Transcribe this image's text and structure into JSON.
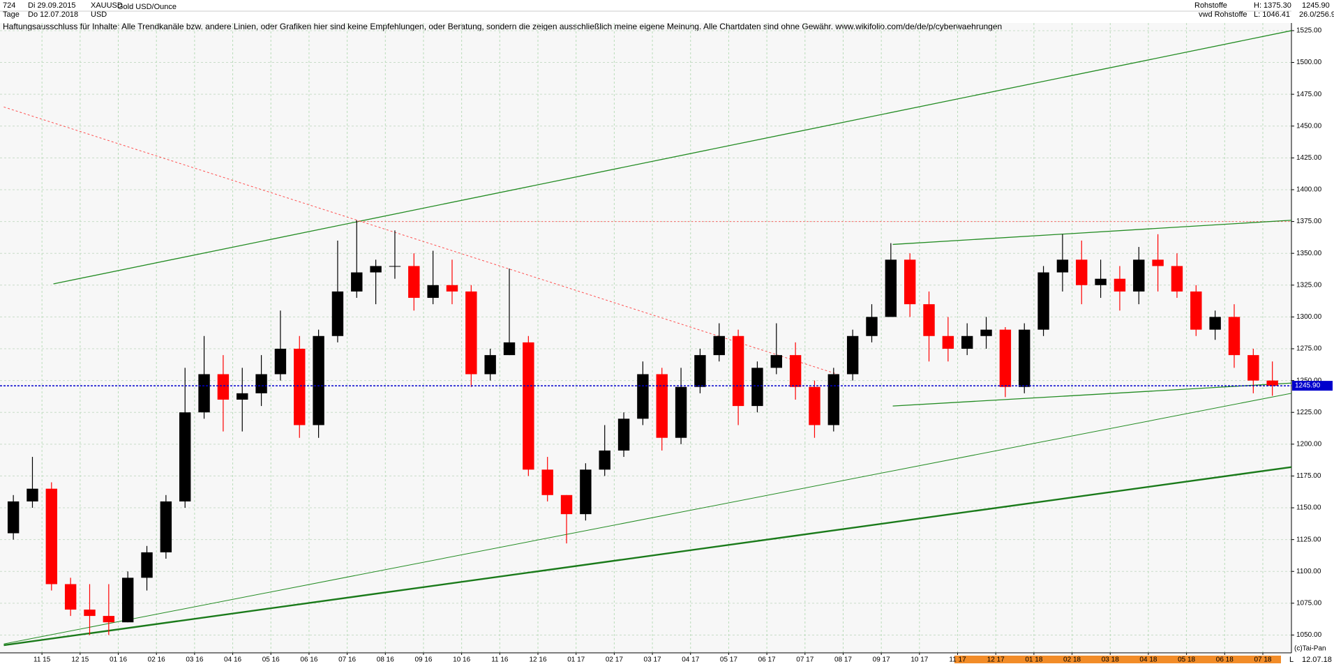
{
  "header": {
    "number": "724",
    "start": "Di 29.09.2015",
    "period": "Tage",
    "end": "Do 12.07.2018",
    "symbol": "XAUUSD",
    "currency": "USD",
    "name": "Gold USD/Ounce",
    "group": "Rohstoffe",
    "source": "vwd Rohstoffe",
    "high": "H: 1375.30",
    "low": "L: 1046.41",
    "last": "1245.90",
    "extra": "26.0/256.9",
    "disclaimer": "Haftungsausschluss für Inhalte: Alle Trendkanäle bzw. andere Linien, oder Grafiken hier sind keine Empfehlungen, oder Beratung, sondern die zeigen ausschließlich meine eigene Meinung. Alle Chartdaten sind ohne Gewähr.  www.wikifolio.com/de/de/p/cyberwaehrungen",
    "copyright": "(c)Tai-Pan",
    "mode": "L",
    "date": "12.07.18"
  },
  "chart_data": {
    "type": "candlestick",
    "open": [
      1130,
      1155,
      1165,
      1090,
      1070,
      1065,
      1060,
      1095,
      1115,
      1155,
      1225,
      1255,
      1235,
      1240,
      1255,
      1275,
      1215,
      1285,
      1320,
      1335,
      1340,
      1340,
      1315,
      1325,
      1320,
      1255,
      1270,
      1280,
      1180,
      1160,
      1145,
      1180,
      1195,
      1220,
      1255,
      1205,
      1245,
      1270,
      1285,
      1230,
      1260,
      1270,
      1245,
      1215,
      1255,
      1285,
      1300,
      1345,
      1310,
      1285,
      1275,
      1285,
      1290,
      1245,
      1290,
      1335,
      1345,
      1325,
      1330,
      1320,
      1345,
      1340,
      1320,
      1290,
      1300,
      1270,
      1250
    ],
    "high": [
      1160,
      1190,
      1170,
      1095,
      1090,
      1090,
      1100,
      1120,
      1160,
      1260,
      1285,
      1270,
      1260,
      1270,
      1305,
      1285,
      1290,
      1360,
      1376,
      1345,
      1368,
      1350,
      1352,
      1345,
      1325,
      1275,
      1338,
      1285,
      1190,
      1160,
      1185,
      1215,
      1225,
      1265,
      1260,
      1260,
      1275,
      1295,
      1290,
      1265,
      1295,
      1280,
      1250,
      1260,
      1290,
      1310,
      1358,
      1350,
      1320,
      1300,
      1295,
      1300,
      1292,
      1295,
      1340,
      1365,
      1360,
      1345,
      1340,
      1355,
      1365,
      1350,
      1325,
      1305,
      1310,
      1275,
      1265
    ],
    "low": [
      1125,
      1150,
      1085,
      1065,
      1050,
      1050,
      1060,
      1085,
      1110,
      1150,
      1220,
      1210,
      1210,
      1230,
      1250,
      1205,
      1205,
      1280,
      1315,
      1310,
      1330,
      1305,
      1310,
      1310,
      1245,
      1250,
      1270,
      1175,
      1155,
      1122,
      1140,
      1175,
      1190,
      1215,
      1195,
      1200,
      1240,
      1265,
      1215,
      1225,
      1255,
      1235,
      1205,
      1210,
      1250,
      1280,
      1300,
      1300,
      1265,
      1265,
      1270,
      1275,
      1237,
      1240,
      1285,
      1320,
      1310,
      1315,
      1305,
      1310,
      1320,
      1315,
      1285,
      1282,
      1260,
      1240,
      1238
    ],
    "close": [
      1155,
      1165,
      1090,
      1070,
      1065,
      1060,
      1095,
      1115,
      1155,
      1225,
      1255,
      1235,
      1240,
      1255,
      1275,
      1215,
      1285,
      1320,
      1335,
      1340,
      1340,
      1315,
      1325,
      1320,
      1255,
      1270,
      1280,
      1180,
      1160,
      1145,
      1180,
      1195,
      1220,
      1255,
      1205,
      1245,
      1270,
      1285,
      1230,
      1260,
      1270,
      1245,
      1215,
      1255,
      1285,
      1300,
      1345,
      1310,
      1285,
      1275,
      1285,
      1290,
      1245,
      1290,
      1335,
      1345,
      1325,
      1330,
      1320,
      1345,
      1340,
      1320,
      1290,
      1300,
      1270,
      1250,
      1245.9
    ],
    "last_label": "1245.90",
    "up_color": "#000000",
    "down_color": "#ff0000",
    "last_color": "#0000cc",
    "xlim": [
      -0.2,
      67.5
    ],
    "xticks": [
      {
        "value": 2,
        "label": "11 15"
      },
      {
        "value": 4,
        "label": "12 15"
      },
      {
        "value": 6,
        "label": "01 16"
      },
      {
        "value": 8,
        "label": "02 16"
      },
      {
        "value": 10,
        "label": "03 16"
      },
      {
        "value": 12,
        "label": "04 16"
      },
      {
        "value": 14,
        "label": "05 16"
      },
      {
        "value": 16,
        "label": "06 16"
      },
      {
        "value": 18,
        "label": "07 16"
      },
      {
        "value": 20,
        "label": "08 16"
      },
      {
        "value": 22,
        "label": "09 16"
      },
      {
        "value": 24,
        "label": "10 16"
      },
      {
        "value": 26,
        "label": "11 16"
      },
      {
        "value": 28,
        "label": "12 16"
      },
      {
        "value": 30,
        "label": "01 17"
      },
      {
        "value": 32,
        "label": "02 17"
      },
      {
        "value": 34,
        "label": "03 17"
      },
      {
        "value": 36,
        "label": "04 17"
      },
      {
        "value": 38,
        "label": "05 17"
      },
      {
        "value": 40,
        "label": "06 17"
      },
      {
        "value": 42,
        "label": "07 17"
      },
      {
        "value": 44,
        "label": "08 17"
      },
      {
        "value": 46,
        "label": "09 17"
      },
      {
        "value": 48,
        "label": "10 17"
      },
      {
        "value": 50,
        "label": "11 17"
      },
      {
        "value": 52,
        "label": "12 17"
      },
      {
        "value": 54,
        "label": "01 18"
      },
      {
        "value": 56,
        "label": "02 18"
      },
      {
        "value": 58,
        "label": "03 18"
      },
      {
        "value": 60,
        "label": "04 18"
      },
      {
        "value": 62,
        "label": "05 18"
      },
      {
        "value": 64,
        "label": "06 18"
      },
      {
        "value": 66,
        "label": "07 18"
      }
    ],
    "ylim": [
      1036,
      1531
    ],
    "yticks": [
      {
        "value": 1050,
        "label": "1050.00"
      },
      {
        "value": 1075,
        "label": "1075.00"
      },
      {
        "value": 1100,
        "label": "1100.00"
      },
      {
        "value": 1125,
        "label": "1125.00"
      },
      {
        "value": 1150,
        "label": "1150.00"
      },
      {
        "value": 1175,
        "label": "1175.00"
      },
      {
        "value": 1200,
        "label": "1200.00"
      },
      {
        "value": 1225,
        "label": "1225.00"
      },
      {
        "value": 1250,
        "label": "1250.00"
      },
      {
        "value": 1275,
        "label": "1275.00"
      },
      {
        "value": 1300,
        "label": "1300.00"
      },
      {
        "value": 1325,
        "label": "1325.00"
      },
      {
        "value": 1350,
        "label": "1350.00"
      },
      {
        "value": 1375,
        "label": "1375.00"
      },
      {
        "value": 1400,
        "label": "1400.00"
      },
      {
        "value": 1425,
        "label": "1425.00"
      },
      {
        "value": 1450,
        "label": "1450.00"
      },
      {
        "value": 1475,
        "label": "1475.00"
      },
      {
        "value": 1500,
        "label": "1500.00"
      },
      {
        "value": 1525,
        "label": "1525.00"
      }
    ],
    "grid": true,
    "trendlines": [
      {
        "x": [
          2.6,
          67.5
        ],
        "y": [
          1326,
          1525
        ],
        "color": "#228b22",
        "width": 1.3,
        "dash": "none"
      },
      {
        "x": [
          0,
          67.5
        ],
        "y": [
          1043,
          1240
        ],
        "color": "#228b22",
        "width": 1,
        "dash": "none"
      },
      {
        "x": [
          0,
          67.5
        ],
        "y": [
          1042,
          1182
        ],
        "color": "#1a7a1a",
        "width": 2.4,
        "dash": "none"
      },
      {
        "x": [
          0,
          43.7
        ],
        "y": [
          1465,
          1255
        ],
        "color": "#ff5050",
        "width": 1,
        "dash": "3 3"
      },
      {
        "x": [
          18.5,
          67.5
        ],
        "y": [
          1375,
          1375
        ],
        "color": "#ff5050",
        "width": 1,
        "dash": "2 3"
      },
      {
        "x": [
          46.6,
          67.5
        ],
        "y": [
          1357,
          1376
        ],
        "color": "#228b22",
        "width": 1.3,
        "dash": "none"
      },
      {
        "x": [
          46.6,
          67.5
        ],
        "y": [
          1230,
          1248
        ],
        "color": "#228b22",
        "width": 1.3,
        "dash": "none"
      }
    ]
  }
}
